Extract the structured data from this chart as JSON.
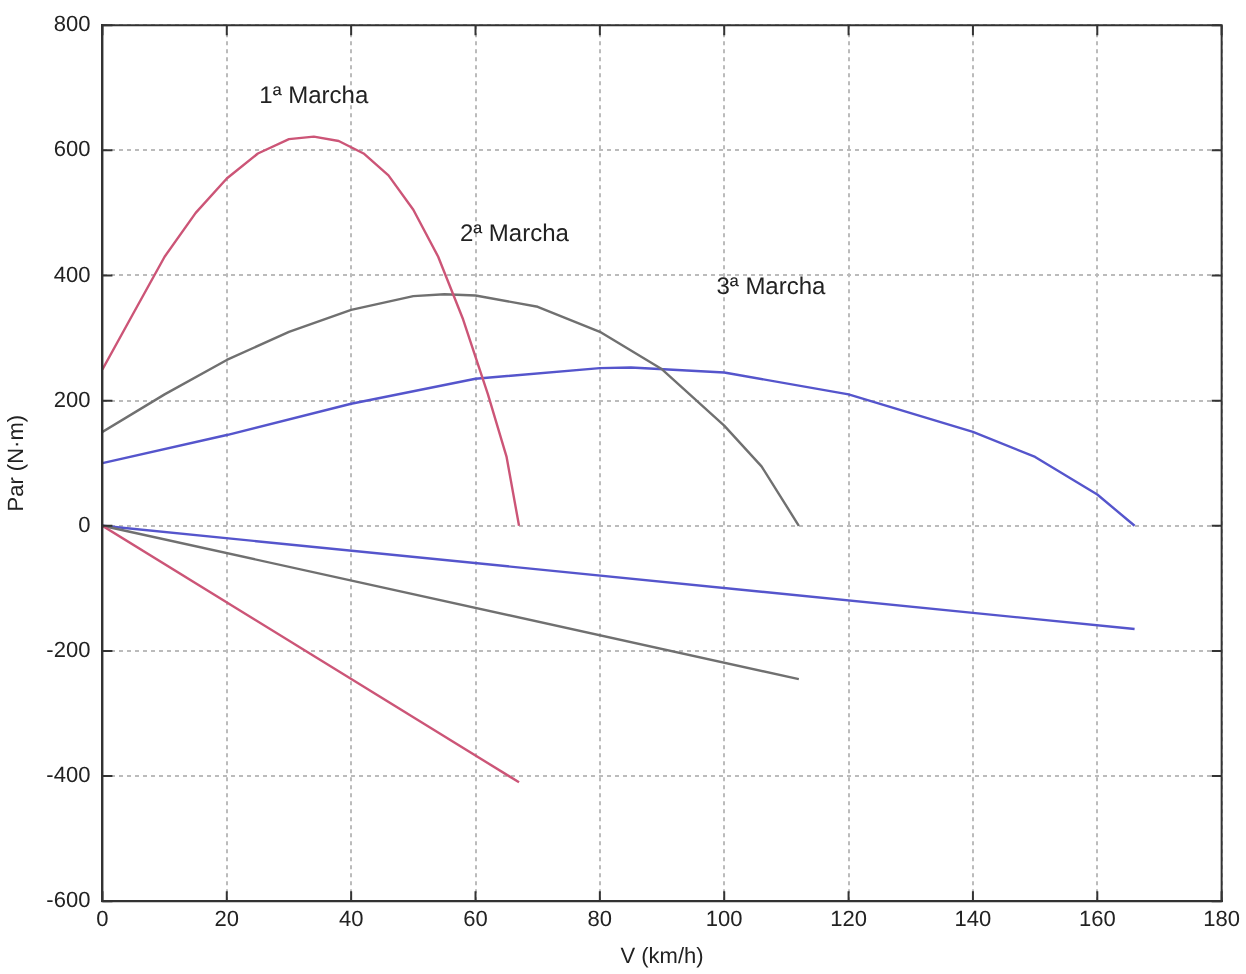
{
  "chart_data": {
    "type": "line",
    "xlabel": "V (km/h)",
    "ylabel": "Par (N·m)",
    "xlim": [
      0,
      180
    ],
    "xticks": [
      0,
      20,
      40,
      60,
      80,
      100,
      120,
      140,
      160,
      180
    ],
    "ylim": [
      -600,
      800
    ],
    "yticks": [
      -600,
      -400,
      -200,
      0,
      200,
      400,
      600,
      800
    ],
    "grid": true,
    "legend": false,
    "marker": "none",
    "line_style": "solid",
    "series": [
      {
        "color": "#cc5577",
        "x": [
          0,
          5,
          10,
          15,
          20,
          25,
          30,
          34,
          38,
          42,
          46,
          50,
          54,
          58,
          62,
          65,
          67
        ],
        "values": [
          250,
          340,
          430,
          500,
          555,
          595,
          618,
          622,
          615,
          595,
          560,
          505,
          430,
          330,
          210,
          110,
          0
        ]
      },
      {
        "color": "#707070",
        "x": [
          0,
          10,
          20,
          30,
          40,
          50,
          55,
          60,
          70,
          80,
          90,
          100,
          106,
          112
        ],
        "values": [
          150,
          210,
          265,
          310,
          345,
          367,
          370,
          368,
          350,
          310,
          250,
          160,
          95,
          0
        ]
      },
      {
        "color": "#5555cc",
        "x": [
          0,
          20,
          40,
          60,
          80,
          85,
          100,
          120,
          140,
          150,
          160,
          166
        ],
        "values": [
          100,
          145,
          195,
          235,
          252,
          253,
          245,
          210,
          150,
          110,
          50,
          0
        ]
      },
      {
        "color": "#cc5577",
        "x": [
          0,
          67
        ],
        "values": [
          0,
          -410
        ]
      },
      {
        "color": "#707070",
        "x": [
          0,
          112
        ],
        "values": [
          0,
          -245
        ]
      },
      {
        "color": "#5555cc",
        "x": [
          0,
          166
        ],
        "values": [
          0,
          -165
        ]
      }
    ],
    "annotations": [
      "1ª Marcha",
      "2ª Marcha",
      "3ª Marcha"
    ]
  }
}
